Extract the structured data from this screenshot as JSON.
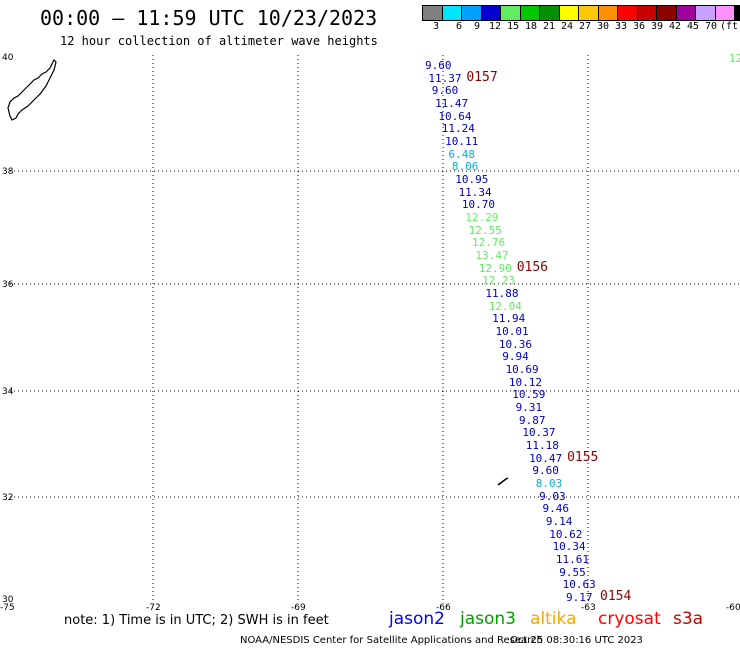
{
  "header": {
    "title": "00:00 – 11:59 UTC 10/23/2023",
    "subtitle": "12 hour collection of altimeter wave heights"
  },
  "color_scale": {
    "labels": [
      "3",
      "6",
      "9",
      "12",
      "15",
      "18",
      "21",
      "24",
      "27",
      "30",
      "33",
      "36",
      "39",
      "42",
      "45",
      "70",
      "(ft)"
    ],
    "colors": [
      "#808080",
      "#00e5ff",
      "#00a0ff",
      "#0000d0",
      "#60ee60",
      "#00c800",
      "#009000",
      "#ffff00",
      "#ffc800",
      "#ff9000",
      "#ff0000",
      "#c80000",
      "#8b0000",
      "#a000a0",
      "#c8a0ff",
      "#ff90ff",
      "#000000"
    ]
  },
  "axes": {
    "lat_labels": [
      "40",
      "38",
      "36",
      "34",
      "32",
      "30"
    ],
    "lon_labels": [
      "-75",
      "-72",
      "-69",
      "-66",
      "-63",
      "-60"
    ]
  },
  "pass_labels": [
    {
      "id": "0157"
    },
    {
      "id": "0156"
    },
    {
      "id": "0155"
    },
    {
      "id": "0154"
    }
  ],
  "observations": [
    {
      "v": "9.60",
      "c": "#0000c0"
    },
    {
      "v": "11.37",
      "c": "#0000c0"
    },
    {
      "v": "9.60",
      "c": "#0000c0"
    },
    {
      "v": "11.47",
      "c": "#0000c0"
    },
    {
      "v": "10.64",
      "c": "#0000c0"
    },
    {
      "v": "11.24",
      "c": "#0000c0"
    },
    {
      "v": "10.11",
      "c": "#0000c0"
    },
    {
      "v": "6.48",
      "c": "#00b0e0"
    },
    {
      "v": "8.06",
      "c": "#00b0e0"
    },
    {
      "v": "10.95",
      "c": "#0000c0"
    },
    {
      "v": "11.34",
      "c": "#0000c0"
    },
    {
      "v": "10.70",
      "c": "#0000c0"
    },
    {
      "v": "12.29",
      "c": "#60ee60"
    },
    {
      "v": "12.55",
      "c": "#60ee60"
    },
    {
      "v": "12.76",
      "c": "#60ee60"
    },
    {
      "v": "13.47",
      "c": "#60ee60"
    },
    {
      "v": "12.90",
      "c": "#60ee60"
    },
    {
      "v": "12.23",
      "c": "#60ee60"
    },
    {
      "v": "11.88",
      "c": "#0000c0"
    },
    {
      "v": "12.04",
      "c": "#60ee60"
    },
    {
      "v": "11.94",
      "c": "#0000c0"
    },
    {
      "v": "10.01",
      "c": "#0000c0"
    },
    {
      "v": "10.36",
      "c": "#0000c0"
    },
    {
      "v": "9.94",
      "c": "#0000c0"
    },
    {
      "v": "10.69",
      "c": "#0000c0"
    },
    {
      "v": "10.12",
      "c": "#0000c0"
    },
    {
      "v": "10.59",
      "c": "#0000c0"
    },
    {
      "v": "9.31",
      "c": "#0000c0"
    },
    {
      "v": "9.87",
      "c": "#0000c0"
    },
    {
      "v": "10.37",
      "c": "#0000c0"
    },
    {
      "v": "11.18",
      "c": "#0000c0"
    },
    {
      "v": "10.47",
      "c": "#0000c0"
    },
    {
      "v": "9.60",
      "c": "#0000c0"
    },
    {
      "v": "8.03",
      "c": "#00b0e0"
    },
    {
      "v": "9.03",
      "c": "#0000c0"
    },
    {
      "v": "9.46",
      "c": "#0000c0"
    },
    {
      "v": "9.14",
      "c": "#0000c0"
    },
    {
      "v": "10.62",
      "c": "#0000c0"
    },
    {
      "v": "10.34",
      "c": "#0000c0"
    },
    {
      "v": "11.61",
      "c": "#0000c0"
    },
    {
      "v": "9.55",
      "c": "#0000c0"
    },
    {
      "v": "10.63",
      "c": "#0000c0"
    },
    {
      "v": "9.17",
      "c": "#0000c0"
    }
  ],
  "edge_value": "12",
  "note": "note:  1) Time is in UTC;  2) SWH is in feet",
  "satellites": [
    {
      "name": "jason2",
      "color": "#0000ff"
    },
    {
      "name": "jason3",
      "color": "#00a000"
    },
    {
      "name": "altika",
      "color": "#ffa500"
    },
    {
      "name": "cryosat",
      "color": "#ff0000"
    },
    {
      "name": "s3a",
      "color": "#c00000"
    }
  ],
  "footer": {
    "source": "NOAA/NESDIS Center for Satellite Applications and Research",
    "timestamp": "Oct 25 08:30:16 UTC 2023"
  }
}
